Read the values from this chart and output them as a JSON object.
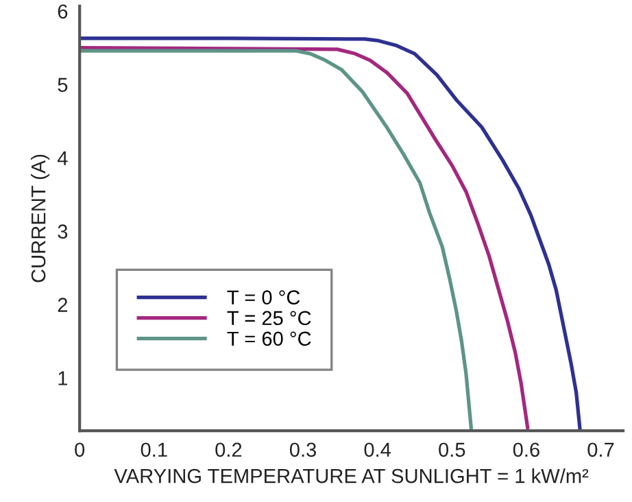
{
  "chart_data": {
    "type": "line",
    "xlabel": "VARYING TEMPERATURE AT SUNLIGHT = 1 kW/m²",
    "ylabel": "CURRENT (A)",
    "xlim": [
      0,
      0.73
    ],
    "ylim": [
      0.28,
      6.07
    ],
    "xticks": [
      0,
      0.1,
      0.2,
      0.3,
      0.4,
      0.5,
      0.6,
      0.7
    ],
    "yticks": [
      1,
      2,
      3,
      4,
      5,
      6
    ],
    "grid": false,
    "legend": "bottom left",
    "marker": "none",
    "line_style": "solid",
    "series": [
      {
        "name": "T = 0 °C",
        "color": "#2e3192",
        "x": [
          0,
          0.2,
          0.383,
          0.4,
          0.426,
          0.45,
          0.48,
          0.506,
          0.54,
          0.568,
          0.59,
          0.606,
          0.63,
          0.64,
          0.648,
          0.66,
          0.667,
          0.672
        ],
        "values": [
          5.63,
          5.63,
          5.62,
          5.6,
          5.53,
          5.42,
          5.13,
          4.79,
          4.42,
          3.97,
          3.58,
          3.22,
          2.55,
          2.2,
          1.8,
          1.2,
          0.8,
          0.3
        ]
      },
      {
        "name": "T = 25 °C",
        "color": "#a3287f",
        "x": [
          0,
          0.2,
          0.346,
          0.37,
          0.39,
          0.413,
          0.44,
          0.476,
          0.5,
          0.519,
          0.535,
          0.55,
          0.574,
          0.585,
          0.593,
          0.602
        ],
        "values": [
          5.5,
          5.49,
          5.48,
          5.42,
          5.33,
          5.16,
          4.88,
          4.28,
          3.9,
          3.54,
          3.1,
          2.66,
          1.8,
          1.35,
          0.92,
          0.3
        ]
      },
      {
        "name": "T = 60 °C",
        "color": "#5e9488",
        "x": [
          0,
          0.15,
          0.29,
          0.31,
          0.33,
          0.352,
          0.38,
          0.413,
          0.435,
          0.457,
          0.47,
          0.487,
          0.497,
          0.506,
          0.513,
          0.519,
          0.526
        ],
        "values": [
          5.46,
          5.46,
          5.46,
          5.42,
          5.33,
          5.2,
          4.9,
          4.41,
          4.05,
          3.66,
          3.25,
          2.79,
          2.35,
          1.91,
          1.5,
          1.06,
          0.3
        ]
      }
    ]
  }
}
